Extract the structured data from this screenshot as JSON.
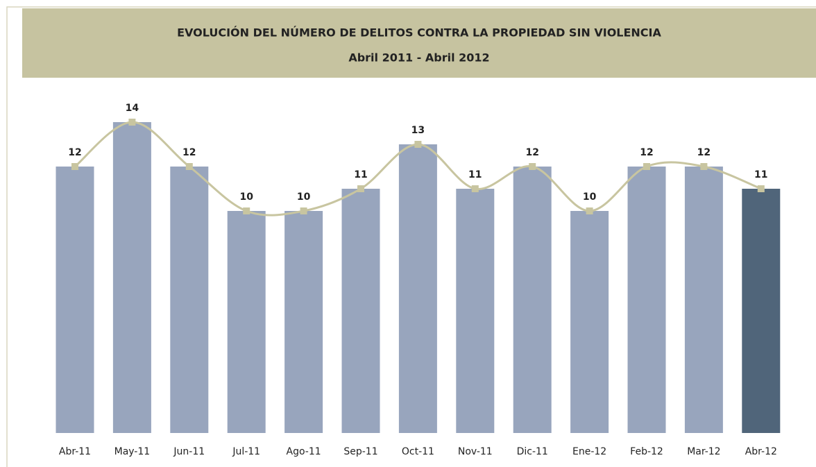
{
  "chart_data": {
    "type": "bar",
    "title": "EVOLUCIÓN DEL NÚMERO DE DELITOS CONTRA LA PROPIEDAD SIN VIOLENCIA",
    "subtitle": "Abril 2011 - Abril 2012",
    "categories": [
      "Abr-11",
      "May-11",
      "Jun-11",
      "Jul-11",
      "Ago-11",
      "Sep-11",
      "Oct-11",
      "Nov-11",
      "Dic-11",
      "Ene-12",
      "Feb-12",
      "Mar-12",
      "Abr-12"
    ],
    "values": [
      12,
      14,
      12,
      10,
      10,
      11,
      13,
      11,
      12,
      10,
      12,
      12,
      11
    ],
    "colors": [
      "#98a5bd",
      "#98a5bd",
      "#98a5bd",
      "#98a5bd",
      "#98a5bd",
      "#98a5bd",
      "#98a5bd",
      "#98a5bd",
      "#98a5bd",
      "#98a5bd",
      "#98a5bd",
      "#98a5bd",
      "#50657a"
    ],
    "line_color": "#c8c5a0",
    "ylim": [
      0,
      15
    ]
  }
}
